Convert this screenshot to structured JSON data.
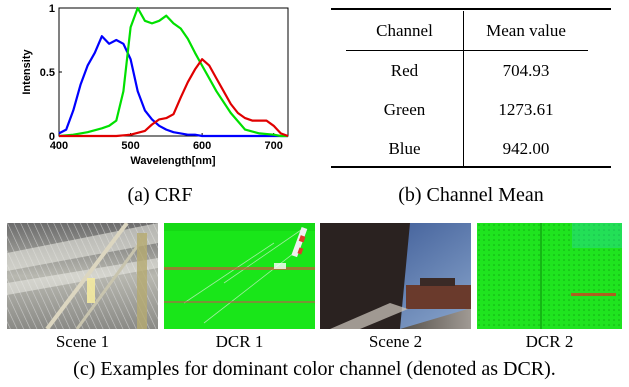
{
  "crf": {
    "caption": "(a) CRF",
    "chart_data": {
      "type": "line",
      "xlabel": "Wavelength[nm]",
      "ylabel": "Intensity",
      "xlim": [
        400,
        720
      ],
      "ylim": [
        0,
        1
      ],
      "xticks": [
        "400",
        "500",
        "600",
        "700"
      ],
      "yticks": [
        "0",
        "0.5",
        "1"
      ],
      "series": [
        {
          "color": "#0000ff",
          "x": [
            400,
            410,
            420,
            430,
            440,
            450,
            460,
            470,
            480,
            490,
            500,
            510,
            520,
            530,
            540,
            550,
            560,
            570,
            580,
            590,
            600,
            620,
            650,
            700,
            720
          ],
          "y": [
            0.02,
            0.05,
            0.2,
            0.4,
            0.55,
            0.65,
            0.78,
            0.72,
            0.75,
            0.72,
            0.6,
            0.35,
            0.2,
            0.13,
            0.08,
            0.05,
            0.03,
            0.02,
            0.01,
            0.01,
            0.0,
            0.0,
            0.0,
            0.0,
            0.0
          ]
        },
        {
          "color": "#00e000",
          "x": [
            400,
            420,
            440,
            460,
            470,
            480,
            490,
            500,
            510,
            520,
            530,
            540,
            550,
            560,
            570,
            580,
            590,
            600,
            610,
            620,
            640,
            660,
            680,
            700,
            710,
            720
          ],
          "y": [
            0.0,
            0.01,
            0.03,
            0.06,
            0.08,
            0.12,
            0.35,
            0.85,
            1.0,
            0.9,
            0.88,
            0.9,
            0.94,
            0.88,
            0.84,
            0.76,
            0.65,
            0.55,
            0.45,
            0.35,
            0.18,
            0.05,
            0.02,
            0.01,
            0.0,
            0.0
          ]
        },
        {
          "color": "#e00000",
          "x": [
            400,
            450,
            480,
            500,
            520,
            530,
            540,
            550,
            560,
            570,
            580,
            590,
            600,
            610,
            620,
            630,
            640,
            650,
            660,
            670,
            680,
            690,
            700,
            710,
            720
          ],
          "y": [
            0.0,
            0.0,
            0.0,
            0.01,
            0.04,
            0.09,
            0.13,
            0.14,
            0.17,
            0.3,
            0.42,
            0.52,
            0.6,
            0.55,
            0.45,
            0.35,
            0.25,
            0.18,
            0.14,
            0.12,
            0.12,
            0.12,
            0.08,
            0.02,
            0.0
          ]
        }
      ]
    }
  },
  "channel_mean": {
    "caption": "(b) Channel Mean",
    "header": [
      "Channel",
      "Mean value"
    ],
    "rows": [
      [
        "Red",
        "704.93"
      ],
      [
        "Green",
        "1273.61"
      ],
      [
        "Blue",
        "942.00"
      ]
    ]
  },
  "examples": {
    "labels": [
      "Scene 1",
      "DCR 1",
      "Scene 2",
      "DCR 2"
    ],
    "caption": "(c) Examples for dominant color channel (denoted as DCR)."
  }
}
